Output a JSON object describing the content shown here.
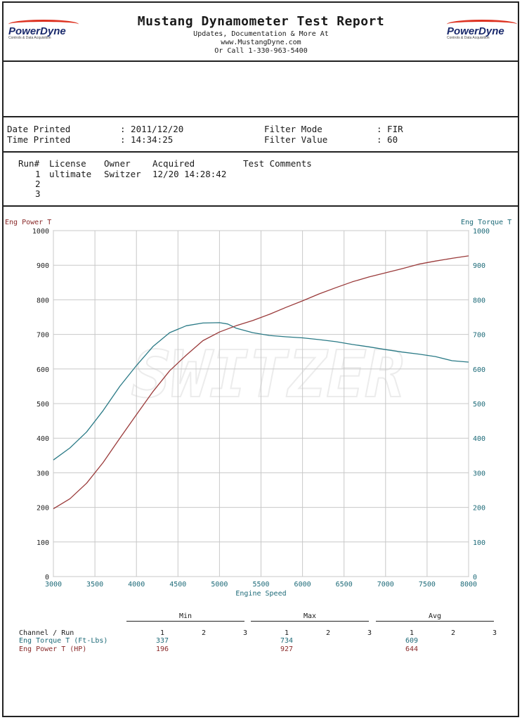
{
  "header": {
    "title": "Mustang Dynamometer Test Report",
    "line1": "Updates, Documentation & More At",
    "line2": "www.MustangDyne.com",
    "line3": "Or Call 1-330-963-5400",
    "logo_left": "PowerDyne",
    "logo_right": "PowerDyne",
    "logo_tagline": "Controls & Data Acquisition"
  },
  "meta": {
    "date_label": "Date Printed",
    "date_value": ": 2011/12/20",
    "time_label": "Time Printed",
    "time_value": ": 14:34:25",
    "filter_mode_label": "Filter Mode",
    "filter_mode_value": ": FIR",
    "filter_value_label": "Filter Value",
    "filter_value_value": ": 60"
  },
  "runs": {
    "headers": [
      "Run#",
      "License",
      "Owner",
      "Acquired",
      "Test Comments"
    ],
    "rows": [
      {
        "run": "1",
        "license": "ultimate",
        "owner": "Switzer",
        "acquired": "12/20 14:28:42",
        "comments": ""
      },
      {
        "run": "2",
        "license": "",
        "owner": "",
        "acquired": "",
        "comments": ""
      },
      {
        "run": "3",
        "license": "",
        "owner": "",
        "acquired": "",
        "comments": ""
      }
    ]
  },
  "chart_data": {
    "type": "line",
    "xlabel": "Engine Speed",
    "ylabel_left": "Eng Power T",
    "ylabel_right": "Eng Torque T",
    "xlim": [
      3000,
      8000
    ],
    "ylim": [
      0,
      1000
    ],
    "xticks": [
      3000,
      3500,
      4000,
      4500,
      5000,
      5500,
      6000,
      6500,
      7000,
      7500,
      8000
    ],
    "yticks": [
      0,
      100,
      200,
      300,
      400,
      500,
      600,
      700,
      800,
      900,
      1000
    ],
    "grid": true,
    "watermark": "SWITZER",
    "series": [
      {
        "name": "Eng Torque T (Ft-Lbs)",
        "color": "#2a7a86",
        "x": [
          3000,
          3200,
          3400,
          3600,
          3800,
          4000,
          4200,
          4400,
          4600,
          4800,
          5000,
          5100,
          5200,
          5400,
          5600,
          5800,
          6000,
          6200,
          6400,
          6600,
          6800,
          7000,
          7200,
          7400,
          7600,
          7800,
          8000
        ],
        "y": [
          337,
          372,
          418,
          480,
          550,
          610,
          665,
          705,
          725,
          733,
          734,
          730,
          718,
          705,
          697,
          693,
          690,
          685,
          679,
          671,
          664,
          656,
          649,
          643,
          636,
          624,
          620
        ]
      },
      {
        "name": "Eng Power T (HP)",
        "color": "#9a3a3a",
        "x": [
          3000,
          3200,
          3400,
          3600,
          3800,
          4000,
          4200,
          4400,
          4600,
          4800,
          5000,
          5200,
          5400,
          5600,
          5800,
          6000,
          6200,
          6400,
          6600,
          6800,
          7000,
          7200,
          7400,
          7600,
          7800,
          8000
        ],
        "y": [
          196,
          225,
          270,
          330,
          400,
          468,
          535,
          595,
          640,
          682,
          707,
          725,
          740,
          758,
          778,
          797,
          817,
          835,
          852,
          866,
          878,
          890,
          903,
          912,
          920,
          927
        ]
      }
    ]
  },
  "summary": {
    "group_headers": [
      "Min",
      "Max",
      "Avg"
    ],
    "run_numbers": [
      "1",
      "2",
      "3"
    ],
    "channel_header": "Channel / Run",
    "rows": [
      {
        "label": "Eng Torque T (Ft-Lbs)",
        "min": "337",
        "max": "734",
        "avg": "609"
      },
      {
        "label": "Eng Power T (HP)",
        "min": "196",
        "max": "927",
        "avg": "644"
      }
    ],
    "torque_color": "#1d6a78",
    "power_color": "#8a2a2a"
  }
}
